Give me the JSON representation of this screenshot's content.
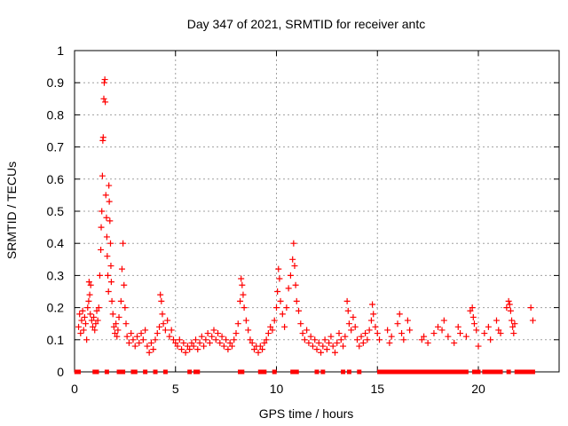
{
  "chart_data": {
    "type": "scatter",
    "title": "Day 347 of 2021, SRMTID for receiver antc",
    "xlabel": "GPS time / hours",
    "ylabel": "SRMTID / TECUs",
    "xlim": [
      0,
      24
    ],
    "ylim": [
      0,
      1
    ],
    "x_ticks": [
      0,
      5,
      10,
      15,
      20
    ],
    "y_ticks": [
      0,
      0.1,
      0.2,
      0.3,
      0.4,
      0.5,
      0.6,
      0.7,
      0.8,
      0.9,
      1
    ],
    "x_tick_labels": [
      "0",
      "5",
      "10",
      "15",
      "20"
    ],
    "y_tick_labels": [
      "0",
      "0.1",
      "0.2",
      "0.3",
      "0.4",
      "0.5",
      "0.6",
      "0.7",
      "0.8",
      "0.9",
      "1"
    ],
    "grid": true,
    "marker": "+",
    "marker_color": "#ff0000",
    "zero_marker": "square",
    "series": [
      {
        "name": "SRMTID",
        "color": "#ff0000",
        "points": [
          [
            0.2,
            0.14
          ],
          [
            0.25,
            0.18
          ],
          [
            0.3,
            0.12
          ],
          [
            0.35,
            0.16
          ],
          [
            0.4,
            0.19
          ],
          [
            0.45,
            0.13
          ],
          [
            0.5,
            0.17
          ],
          [
            0.55,
            0.15
          ],
          [
            0.6,
            0.1
          ],
          [
            0.65,
            0.2
          ],
          [
            0.7,
            0.22
          ],
          [
            0.72,
            0.28
          ],
          [
            0.75,
            0.24
          ],
          [
            0.78,
            0.18
          ],
          [
            0.8,
            0.27
          ],
          [
            0.85,
            0.16
          ],
          [
            0.9,
            0.14
          ],
          [
            0.95,
            0.17
          ],
          [
            1.0,
            0.13
          ],
          [
            1.05,
            0.15
          ],
          [
            1.1,
            0.19
          ],
          [
            1.15,
            0.16
          ],
          [
            1.2,
            0.2
          ],
          [
            1.25,
            0.3
          ],
          [
            1.3,
            0.38
          ],
          [
            1.32,
            0.45
          ],
          [
            1.35,
            0.5
          ],
          [
            1.38,
            0.61
          ],
          [
            1.4,
            0.72
          ],
          [
            1.42,
            0.73
          ],
          [
            1.45,
            0.85
          ],
          [
            1.47,
            0.9
          ],
          [
            1.5,
            0.91
          ],
          [
            1.52,
            0.84
          ],
          [
            1.55,
            0.55
          ],
          [
            1.58,
            0.48
          ],
          [
            1.6,
            0.42
          ],
          [
            1.62,
            0.36
          ],
          [
            1.65,
            0.3
          ],
          [
            1.68,
            0.25
          ],
          [
            1.7,
            0.58
          ],
          [
            1.72,
            0.53
          ],
          [
            1.75,
            0.47
          ],
          [
            1.78,
            0.4
          ],
          [
            1.8,
            0.33
          ],
          [
            1.82,
            0.28
          ],
          [
            1.85,
            0.22
          ],
          [
            1.9,
            0.18
          ],
          [
            1.95,
            0.14
          ],
          [
            2.0,
            0.12
          ],
          [
            2.05,
            0.15
          ],
          [
            2.1,
            0.11
          ],
          [
            2.15,
            0.13
          ],
          [
            2.2,
            0.17
          ],
          [
            2.3,
            0.22
          ],
          [
            2.35,
            0.32
          ],
          [
            2.4,
            0.4
          ],
          [
            2.45,
            0.27
          ],
          [
            2.5,
            0.2
          ],
          [
            2.55,
            0.15
          ],
          [
            2.6,
            0.11
          ],
          [
            2.7,
            0.09
          ],
          [
            2.8,
            0.12
          ],
          [
            2.9,
            0.1
          ],
          [
            3.0,
            0.08
          ],
          [
            3.1,
            0.11
          ],
          [
            3.2,
            0.09
          ],
          [
            3.3,
            0.12
          ],
          [
            3.4,
            0.1
          ],
          [
            3.5,
            0.13
          ],
          [
            3.6,
            0.08
          ],
          [
            3.7,
            0.06
          ],
          [
            3.8,
            0.09
          ],
          [
            3.9,
            0.07
          ],
          [
            4.0,
            0.1
          ],
          [
            4.1,
            0.12
          ],
          [
            4.2,
            0.14
          ],
          [
            4.25,
            0.24
          ],
          [
            4.3,
            0.22
          ],
          [
            4.35,
            0.18
          ],
          [
            4.4,
            0.15
          ],
          [
            4.5,
            0.13
          ],
          [
            4.6,
            0.16
          ],
          [
            4.7,
            0.11
          ],
          [
            4.8,
            0.13
          ],
          [
            4.9,
            0.1
          ],
          [
            5.0,
            0.09
          ],
          [
            5.1,
            0.08
          ],
          [
            5.2,
            0.1
          ],
          [
            5.3,
            0.07
          ],
          [
            5.4,
            0.09
          ],
          [
            5.5,
            0.06
          ],
          [
            5.6,
            0.08
          ],
          [
            5.7,
            0.07
          ],
          [
            5.8,
            0.09
          ],
          [
            5.9,
            0.08
          ],
          [
            6.0,
            0.1
          ],
          [
            6.1,
            0.07
          ],
          [
            6.2,
            0.09
          ],
          [
            6.3,
            0.11
          ],
          [
            6.4,
            0.08
          ],
          [
            6.5,
            0.1
          ],
          [
            6.6,
            0.12
          ],
          [
            6.7,
            0.09
          ],
          [
            6.8,
            0.11
          ],
          [
            6.9,
            0.13
          ],
          [
            7.0,
            0.1
          ],
          [
            7.1,
            0.12
          ],
          [
            7.2,
            0.09
          ],
          [
            7.3,
            0.11
          ],
          [
            7.4,
            0.08
          ],
          [
            7.5,
            0.1
          ],
          [
            7.6,
            0.07
          ],
          [
            7.7,
            0.09
          ],
          [
            7.8,
            0.08
          ],
          [
            7.9,
            0.1
          ],
          [
            8.0,
            0.12
          ],
          [
            8.1,
            0.15
          ],
          [
            8.2,
            0.22
          ],
          [
            8.25,
            0.29
          ],
          [
            8.3,
            0.27
          ],
          [
            8.35,
            0.24
          ],
          [
            8.4,
            0.2
          ],
          [
            8.5,
            0.16
          ],
          [
            8.6,
            0.13
          ],
          [
            8.7,
            0.1
          ],
          [
            8.8,
            0.09
          ],
          [
            8.9,
            0.07
          ],
          [
            9.0,
            0.08
          ],
          [
            9.1,
            0.06
          ],
          [
            9.2,
            0.08
          ],
          [
            9.3,
            0.07
          ],
          [
            9.4,
            0.09
          ],
          [
            9.5,
            0.1
          ],
          [
            9.6,
            0.12
          ],
          [
            9.7,
            0.14
          ],
          [
            9.8,
            0.13
          ],
          [
            9.9,
            0.16
          ],
          [
            10.0,
            0.2
          ],
          [
            10.05,
            0.25
          ],
          [
            10.1,
            0.32
          ],
          [
            10.15,
            0.29
          ],
          [
            10.2,
            0.22
          ],
          [
            10.3,
            0.18
          ],
          [
            10.4,
            0.14
          ],
          [
            10.5,
            0.2
          ],
          [
            10.6,
            0.26
          ],
          [
            10.7,
            0.3
          ],
          [
            10.8,
            0.35
          ],
          [
            10.85,
            0.4
          ],
          [
            10.9,
            0.33
          ],
          [
            10.95,
            0.27
          ],
          [
            11.0,
            0.22
          ],
          [
            11.1,
            0.19
          ],
          [
            11.2,
            0.15
          ],
          [
            11.3,
            0.12
          ],
          [
            11.4,
            0.1
          ],
          [
            11.5,
            0.13
          ],
          [
            11.6,
            0.09
          ],
          [
            11.7,
            0.11
          ],
          [
            11.8,
            0.08
          ],
          [
            11.9,
            0.1
          ],
          [
            12.0,
            0.07
          ],
          [
            12.1,
            0.09
          ],
          [
            12.2,
            0.06
          ],
          [
            12.3,
            0.08
          ],
          [
            12.4,
            0.1
          ],
          [
            12.5,
            0.07
          ],
          [
            12.6,
            0.09
          ],
          [
            12.7,
            0.11
          ],
          [
            12.8,
            0.08
          ],
          [
            12.9,
            0.06
          ],
          [
            13.0,
            0.09
          ],
          [
            13.1,
            0.12
          ],
          [
            13.2,
            0.1
          ],
          [
            13.3,
            0.08
          ],
          [
            13.4,
            0.11
          ],
          [
            13.5,
            0.22
          ],
          [
            13.55,
            0.19
          ],
          [
            13.6,
            0.15
          ],
          [
            13.7,
            0.13
          ],
          [
            13.8,
            0.17
          ],
          [
            13.9,
            0.14
          ],
          [
            14.0,
            0.1
          ],
          [
            14.1,
            0.08
          ],
          [
            14.2,
            0.11
          ],
          [
            14.3,
            0.09
          ],
          [
            14.4,
            0.12
          ],
          [
            14.5,
            0.1
          ],
          [
            14.6,
            0.13
          ],
          [
            14.7,
            0.16
          ],
          [
            14.75,
            0.21
          ],
          [
            14.8,
            0.18
          ],
          [
            14.9,
            0.14
          ],
          [
            15.0,
            0.12
          ],
          [
            15.1,
            0.1
          ],
          [
            15.5,
            0.13
          ],
          [
            15.6,
            0.09
          ],
          [
            15.7,
            0.11
          ],
          [
            16.0,
            0.15
          ],
          [
            16.1,
            0.18
          ],
          [
            16.2,
            0.12
          ],
          [
            16.3,
            0.1
          ],
          [
            16.5,
            0.16
          ],
          [
            16.6,
            0.13
          ],
          [
            17.2,
            0.1
          ],
          [
            17.3,
            0.11
          ],
          [
            17.5,
            0.09
          ],
          [
            17.8,
            0.12
          ],
          [
            18.0,
            0.14
          ],
          [
            18.2,
            0.13
          ],
          [
            18.3,
            0.16
          ],
          [
            18.5,
            0.11
          ],
          [
            18.8,
            0.09
          ],
          [
            19.0,
            0.14
          ],
          [
            19.1,
            0.12
          ],
          [
            19.4,
            0.11
          ],
          [
            19.6,
            0.19
          ],
          [
            19.7,
            0.2
          ],
          [
            19.75,
            0.17
          ],
          [
            19.8,
            0.15
          ],
          [
            19.9,
            0.13
          ],
          [
            20.0,
            0.08
          ],
          [
            20.3,
            0.12
          ],
          [
            20.5,
            0.14
          ],
          [
            20.6,
            0.1
          ],
          [
            20.9,
            0.16
          ],
          [
            21.0,
            0.13
          ],
          [
            21.1,
            0.12
          ],
          [
            21.4,
            0.2
          ],
          [
            21.5,
            0.22
          ],
          [
            21.55,
            0.21
          ],
          [
            21.6,
            0.19
          ],
          [
            21.65,
            0.16
          ],
          [
            21.7,
            0.14
          ],
          [
            21.75,
            0.12
          ],
          [
            21.8,
            0.15
          ],
          [
            22.6,
            0.2
          ],
          [
            22.7,
            0.16
          ]
        ]
      }
    ],
    "zero_points": [
      0.1,
      0.2,
      1.0,
      1.1,
      1.6,
      2.2,
      2.4,
      2.9,
      3.0,
      3.5,
      4.0,
      4.5,
      5.7,
      6.0,
      6.1,
      8.2,
      8.3,
      9.2,
      9.4,
      9.9,
      10.8,
      11.0,
      12.0,
      12.3,
      13.3,
      13.6,
      14.1,
      15.1,
      15.2,
      15.4,
      15.6,
      15.8,
      16.0,
      16.2,
      16.4,
      16.6,
      16.8,
      17.0,
      17.2,
      17.4,
      17.6,
      17.8,
      18.0,
      18.2,
      18.4,
      18.6,
      18.8,
      19.0,
      19.2,
      19.4,
      19.8,
      20.0,
      20.3,
      20.5,
      20.7,
      20.9,
      21.1,
      21.5,
      21.9,
      22.1,
      22.3,
      22.5,
      22.7
    ]
  }
}
